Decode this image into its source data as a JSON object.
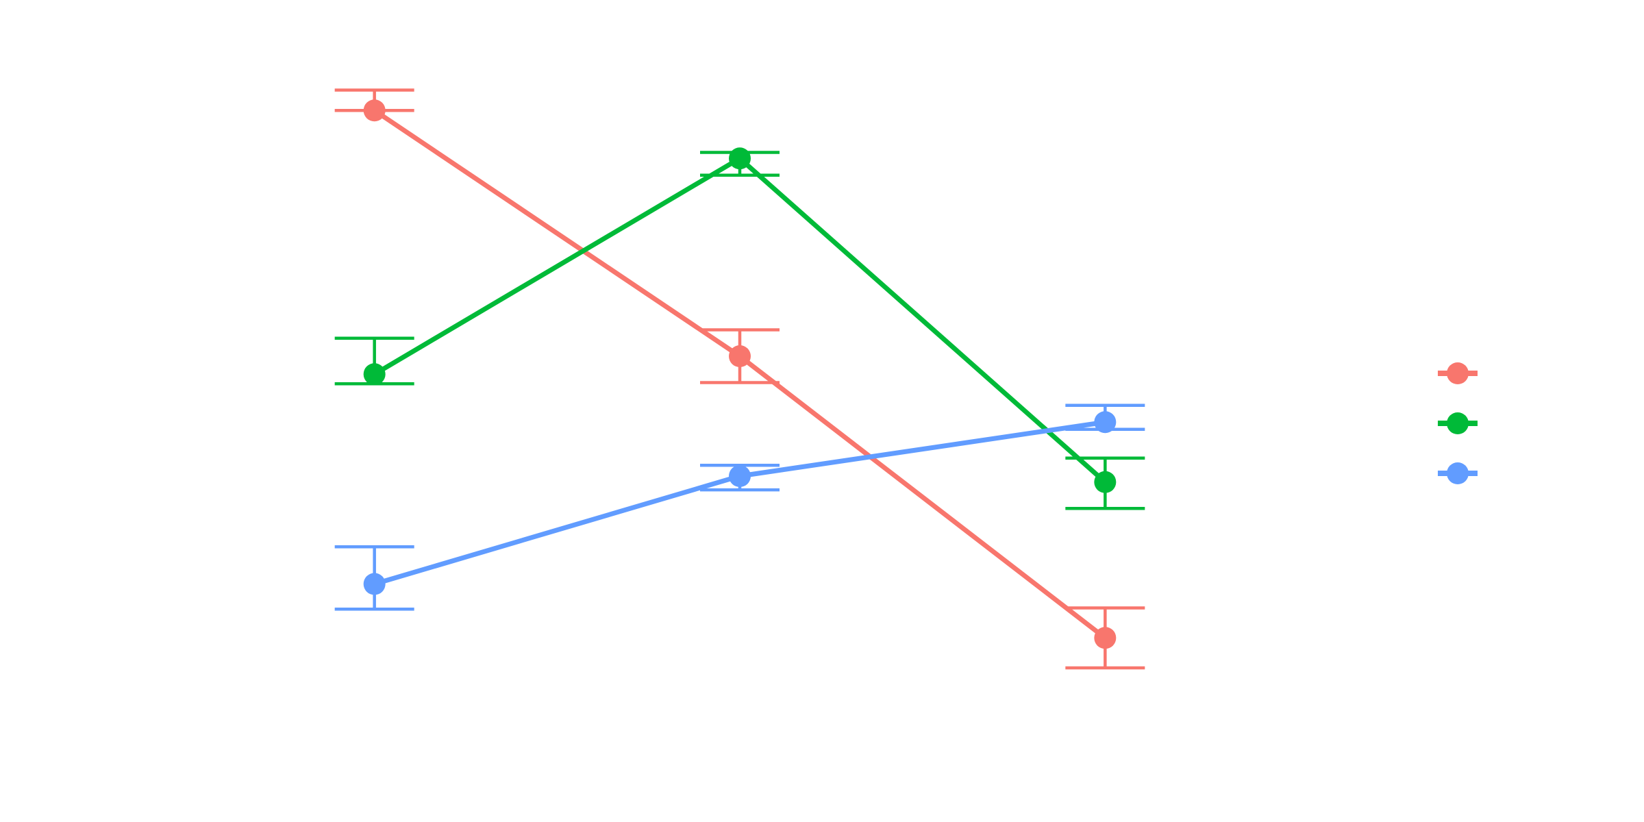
{
  "chart_data": {
    "type": "line",
    "title": "",
    "xlabel": "",
    "ylabel": "",
    "grid": false,
    "error_bars": true,
    "legend_position": "right",
    "x": [
      1,
      2,
      3
    ],
    "ylim": [
      0,
      12
    ],
    "series": [
      {
        "color": "#F8766D",
        "values": [
          10.9,
          6.8,
          2.1
        ],
        "err_low": [
          10.9,
          6.36,
          1.6
        ],
        "err_high": [
          11.24,
          7.24,
          2.6
        ]
      },
      {
        "color": "#00BA38",
        "values": [
          6.5,
          10.1,
          4.7
        ],
        "err_low": [
          6.34,
          9.82,
          4.26
        ],
        "err_high": [
          7.1,
          10.2,
          5.1
        ]
      },
      {
        "color": "#619CFF",
        "values": [
          3.0,
          4.8,
          5.7
        ],
        "err_low": [
          2.58,
          4.57,
          5.58
        ],
        "err_high": [
          3.62,
          4.98,
          5.98
        ]
      }
    ]
  }
}
